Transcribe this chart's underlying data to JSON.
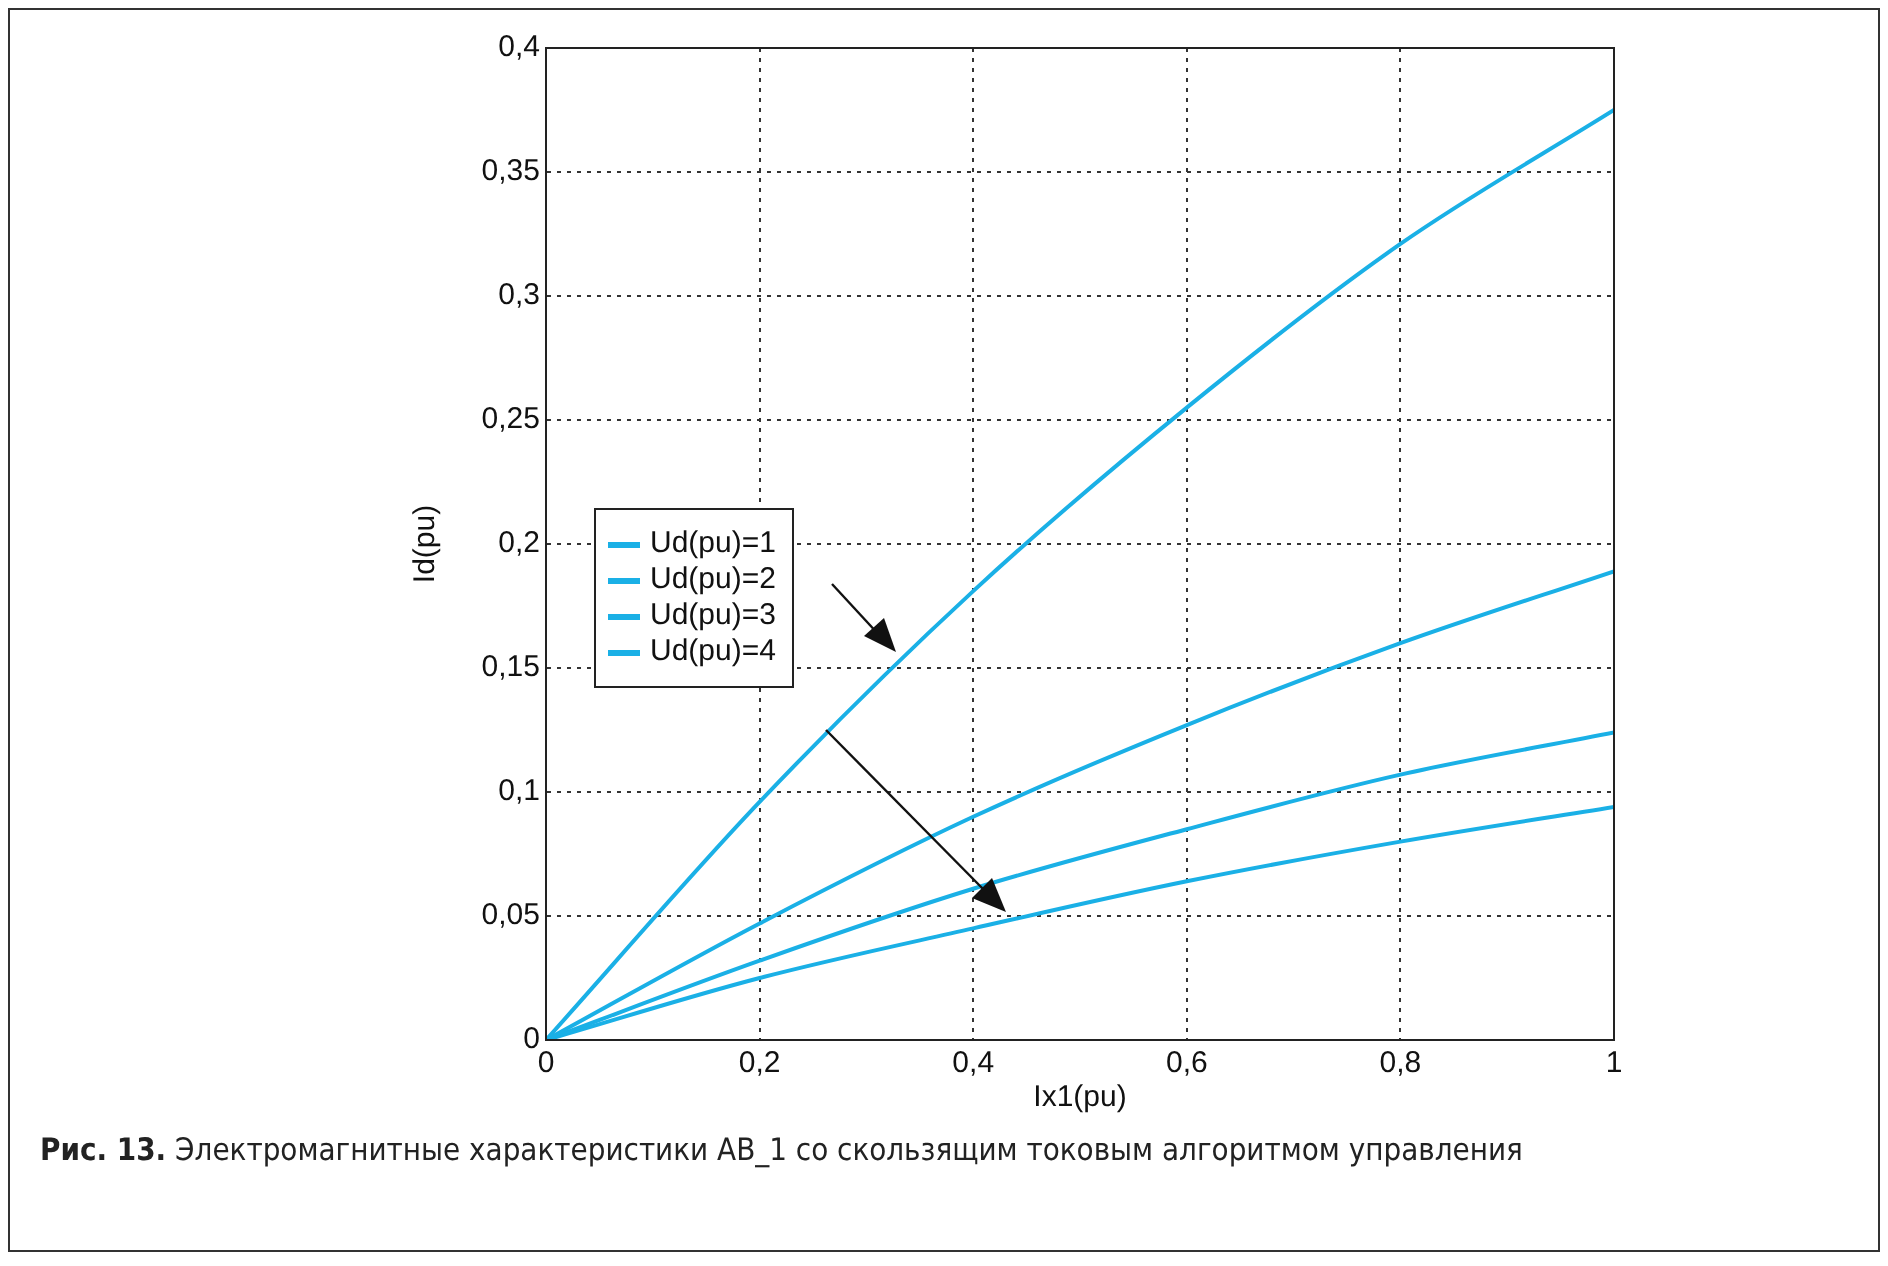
{
  "chart_data": {
    "type": "line",
    "xlabel": "Ix1(pu)",
    "ylabel": "Id(pu)",
    "x": [
      0,
      0.2,
      0.4,
      0.6,
      0.8,
      1
    ],
    "series": [
      {
        "name": "Ud(pu)=1",
        "color": "#1ab0e6",
        "values": [
          0,
          0.096,
          0.181,
          0.255,
          0.321,
          0.375
        ]
      },
      {
        "name": "Ud(pu)=2",
        "color": "#1ab0e6",
        "values": [
          0,
          0.047,
          0.09,
          0.127,
          0.16,
          0.189
        ]
      },
      {
        "name": "Ud(pu)=3",
        "color": "#1ab0e6",
        "values": [
          0,
          0.032,
          0.061,
          0.085,
          0.107,
          0.124
        ]
      },
      {
        "name": "Ud(pu)=4",
        "color": "#1ab0e6",
        "values": [
          0,
          0.025,
          0.045,
          0.064,
          0.08,
          0.094
        ]
      }
    ],
    "xlim": [
      0,
      1
    ],
    "xticks": [
      0,
      {
        "value": 0.2,
        "label": "0,2"
      },
      {
        "value": 0.4,
        "label": "0,4"
      },
      {
        "value": 0.6,
        "label": "0,6"
      },
      {
        "value": 0.8,
        "label": "0,8"
      },
      1
    ],
    "ylim": [
      0,
      0.4
    ],
    "yticks": [
      0,
      {
        "value": 0.05,
        "label": "0,05"
      },
      {
        "value": 0.1,
        "label": "0,1"
      },
      {
        "value": 0.15,
        "label": "0,15"
      },
      {
        "value": 0.2,
        "label": "0,2"
      },
      {
        "value": 0.25,
        "label": "0,25"
      },
      {
        "value": 0.3,
        "label": "0,3"
      },
      {
        "value": 0.35,
        "label": "0,35"
      },
      {
        "value": 0.4,
        "label": "0,4"
      }
    ],
    "grid": true,
    "legend": "left",
    "marker": "none",
    "line_style": "solid",
    "annotations": [
      "Рис. 13. Электромагнитные характеристики АВ_1 со скользящим токовым алгоритмом управления"
    ]
  }
}
